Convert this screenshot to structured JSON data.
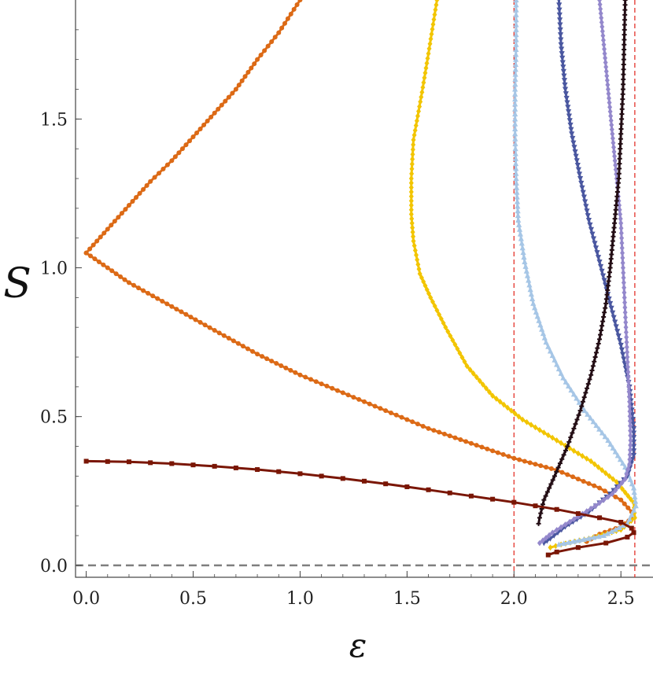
{
  "chart_data": {
    "type": "line",
    "xlabel": "ε",
    "ylabel": "S",
    "xlim": [
      -0.05,
      2.65
    ],
    "ylim": [
      -0.04,
      1.9
    ],
    "xticks": [
      "0.0",
      "0.5",
      "1.0",
      "1.5",
      "2.0",
      "2.5"
    ],
    "xtick_values": [
      0.0,
      0.5,
      1.0,
      1.5,
      2.0,
      2.5
    ],
    "yticks": [
      "0.0",
      "0.5",
      "1.0",
      "1.5"
    ],
    "ytick_values": [
      0.0,
      0.5,
      1.0,
      1.5
    ],
    "reference_lines": [
      {
        "orientation": "horizontal",
        "value": 0.0,
        "color": "#7f7f7f",
        "style": "dashed"
      },
      {
        "orientation": "vertical",
        "value": 2.0,
        "color": "#e2231a",
        "style": "dashed"
      },
      {
        "orientation": "vertical",
        "value": 2.565,
        "color": "#e2231a",
        "style": "dashed"
      }
    ],
    "series": [
      {
        "color": "#dc6a16",
        "marker": "circle",
        "points": [
          [
            0.0,
            1.05
          ],
          [
            0.1,
            1.13
          ],
          [
            0.2,
            1.21
          ],
          [
            0.3,
            1.29
          ],
          [
            0.4,
            1.36
          ],
          [
            0.5,
            1.44
          ],
          [
            0.6,
            1.52
          ],
          [
            0.7,
            1.6
          ],
          [
            0.8,
            1.7
          ],
          [
            0.9,
            1.79
          ],
          [
            1.0,
            1.9
          ],
          [
            0.0,
            1.05
          ],
          [
            0.1,
            1.0
          ],
          [
            0.2,
            0.95
          ],
          [
            0.4,
            0.87
          ],
          [
            0.6,
            0.79
          ],
          [
            0.8,
            0.71
          ],
          [
            1.0,
            0.64
          ],
          [
            1.2,
            0.58
          ],
          [
            1.4,
            0.52
          ],
          [
            1.6,
            0.46
          ],
          [
            1.8,
            0.41
          ],
          [
            2.0,
            0.36
          ],
          [
            2.2,
            0.32
          ],
          [
            2.4,
            0.26
          ],
          [
            2.5,
            0.22
          ],
          [
            2.55,
            0.18
          ],
          [
            2.555,
            0.16
          ],
          [
            2.5,
            0.13
          ],
          [
            2.4,
            0.105
          ],
          [
            2.34,
            0.08
          ]
        ]
      },
      {
        "color": "#f2c500",
        "marker": "diamond",
        "points": [
          [
            1.64,
            1.9
          ],
          [
            1.6,
            1.72
          ],
          [
            1.57,
            1.59
          ],
          [
            1.53,
            1.43
          ],
          [
            1.52,
            1.3
          ],
          [
            1.52,
            1.18
          ],
          [
            1.53,
            1.09
          ],
          [
            1.56,
            0.98
          ],
          [
            1.61,
            0.9
          ],
          [
            1.68,
            0.8
          ],
          [
            1.78,
            0.67
          ],
          [
            1.9,
            0.57
          ],
          [
            2.04,
            0.49
          ],
          [
            2.2,
            0.42
          ],
          [
            2.36,
            0.35
          ],
          [
            2.48,
            0.28
          ],
          [
            2.56,
            0.21
          ],
          [
            2.565,
            0.16
          ],
          [
            2.5,
            0.12
          ],
          [
            2.35,
            0.09
          ],
          [
            2.22,
            0.07
          ],
          [
            2.17,
            0.06
          ]
        ]
      },
      {
        "color": "#a6c6e6",
        "marker": "triangle-up",
        "points": [
          [
            2.01,
            1.9
          ],
          [
            2.01,
            1.75
          ],
          [
            2.005,
            1.6
          ],
          [
            2.005,
            1.45
          ],
          [
            2.01,
            1.3
          ],
          [
            2.02,
            1.16
          ],
          [
            2.05,
            1.02
          ],
          [
            2.09,
            0.88
          ],
          [
            2.15,
            0.75
          ],
          [
            2.23,
            0.63
          ],
          [
            2.33,
            0.52
          ],
          [
            2.44,
            0.42
          ],
          [
            2.52,
            0.33
          ],
          [
            2.56,
            0.26
          ],
          [
            2.57,
            0.2
          ],
          [
            2.53,
            0.14
          ],
          [
            2.42,
            0.1
          ],
          [
            2.28,
            0.08
          ],
          [
            2.21,
            0.07
          ]
        ]
      },
      {
        "color": "#4a57a0",
        "marker": "triangle-down",
        "points": [
          [
            2.21,
            1.9
          ],
          [
            2.22,
            1.75
          ],
          [
            2.24,
            1.6
          ],
          [
            2.27,
            1.45
          ],
          [
            2.31,
            1.3
          ],
          [
            2.35,
            1.16
          ],
          [
            2.4,
            1.02
          ],
          [
            2.45,
            0.88
          ],
          [
            2.5,
            0.74
          ],
          [
            2.54,
            0.6
          ],
          [
            2.56,
            0.46
          ],
          [
            2.56,
            0.37
          ],
          [
            2.53,
            0.3
          ],
          [
            2.45,
            0.24
          ],
          [
            2.35,
            0.18
          ],
          [
            2.24,
            0.13
          ],
          [
            2.17,
            0.09
          ],
          [
            2.14,
            0.075
          ]
        ]
      },
      {
        "color": "#9488cc",
        "marker": "diamond",
        "points": [
          [
            2.4,
            1.9
          ],
          [
            2.42,
            1.75
          ],
          [
            2.44,
            1.6
          ],
          [
            2.46,
            1.45
          ],
          [
            2.48,
            1.3
          ],
          [
            2.5,
            1.15
          ],
          [
            2.51,
            1.0
          ],
          [
            2.52,
            0.85
          ],
          [
            2.53,
            0.7
          ],
          [
            2.54,
            0.55
          ],
          [
            2.545,
            0.42
          ],
          [
            2.54,
            0.34
          ],
          [
            2.52,
            0.29
          ],
          [
            2.46,
            0.24
          ],
          [
            2.38,
            0.2
          ],
          [
            2.28,
            0.155
          ],
          [
            2.18,
            0.11
          ],
          [
            2.12,
            0.075
          ]
        ]
      },
      {
        "color": "#230d14",
        "marker": "plus",
        "points": [
          [
            2.52,
            1.9
          ],
          [
            2.515,
            1.75
          ],
          [
            2.51,
            1.6
          ],
          [
            2.5,
            1.45
          ],
          [
            2.49,
            1.3
          ],
          [
            2.47,
            1.15
          ],
          [
            2.45,
            1.0
          ],
          [
            2.43,
            0.88
          ],
          [
            2.4,
            0.76
          ],
          [
            2.36,
            0.64
          ],
          [
            2.31,
            0.52
          ],
          [
            2.25,
            0.4
          ],
          [
            2.19,
            0.3
          ],
          [
            2.14,
            0.22
          ],
          [
            2.12,
            0.16
          ],
          [
            2.115,
            0.14
          ]
        ]
      },
      {
        "color": "#7a1605",
        "marker": "square",
        "points": [
          [
            0.0,
            0.35
          ],
          [
            0.2,
            0.348
          ],
          [
            0.4,
            0.342
          ],
          [
            0.6,
            0.333
          ],
          [
            0.8,
            0.322
          ],
          [
            1.0,
            0.308
          ],
          [
            1.2,
            0.292
          ],
          [
            1.4,
            0.274
          ],
          [
            1.6,
            0.254
          ],
          [
            1.8,
            0.233
          ],
          [
            2.0,
            0.212
          ],
          [
            2.2,
            0.188
          ],
          [
            2.4,
            0.16
          ],
          [
            2.5,
            0.145
          ],
          [
            2.55,
            0.125
          ],
          [
            2.56,
            0.11
          ],
          [
            2.53,
            0.095
          ],
          [
            2.43,
            0.075
          ],
          [
            2.3,
            0.06
          ],
          [
            2.2,
            0.045
          ],
          [
            2.16,
            0.035
          ]
        ]
      }
    ]
  }
}
